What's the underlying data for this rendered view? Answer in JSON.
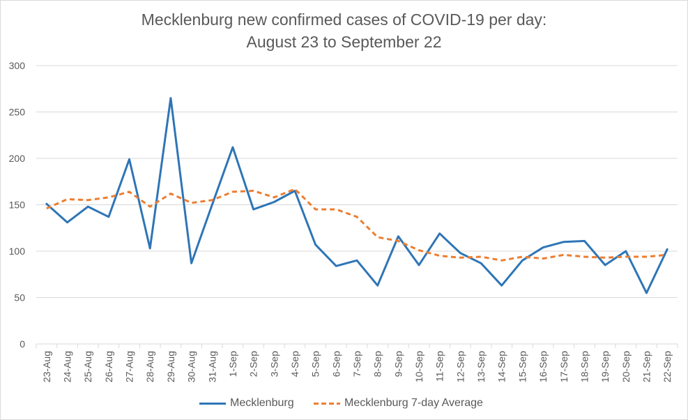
{
  "chart_data": {
    "type": "line",
    "title": "Mecklenburg new confirmed cases of COVID-19 per day:",
    "subtitle": "August 23 to September 22",
    "categories": [
      "23-Aug",
      "24-Aug",
      "25-Aug",
      "26-Aug",
      "27-Aug",
      "28-Aug",
      "29-Aug",
      "30-Aug",
      "31-Aug",
      "1-Sep",
      "2-Sep",
      "3-Sep",
      "4-Sep",
      "5-Sep",
      "6-Sep",
      "7-Sep",
      "8-Sep",
      "9-Sep",
      "10-Sep",
      "11-Sep",
      "12-Sep",
      "13-Sep",
      "14-Sep",
      "15-Sep",
      "16-Sep",
      "17-Sep",
      "18-Sep",
      "19-Sep",
      "20-Sep",
      "21-Sep",
      "22-Sep"
    ],
    "ylim": [
      0,
      300
    ],
    "yticks": [
      "0",
      "50",
      "100",
      "150",
      "200",
      "250",
      "300"
    ],
    "grid": true,
    "legend_position": "bottom",
    "series": [
      {
        "name": "Mecklenburg",
        "style": "solid",
        "color": "#2e75b6",
        "values": [
          151,
          131,
          148,
          137,
          199,
          103,
          265,
          87,
          150,
          212,
          145,
          153,
          165,
          107,
          84,
          90,
          63,
          116,
          85,
          119,
          98,
          87,
          63,
          90,
          104,
          110,
          111,
          85,
          100,
          55,
          102
        ]
      },
      {
        "name": "Mecklenburg 7-day Average",
        "style": "dashed",
        "color": "#ed7d31",
        "values": [
          146,
          156,
          155,
          158,
          164,
          148,
          162,
          152,
          155,
          164,
          165,
          158,
          167,
          145,
          145,
          137,
          115,
          111,
          101,
          95,
          93,
          94,
          90,
          94,
          92,
          96,
          94,
          93,
          94,
          94,
          96
        ]
      }
    ]
  },
  "colors": {
    "grid": "#d9d9d9",
    "text": "#595959"
  }
}
